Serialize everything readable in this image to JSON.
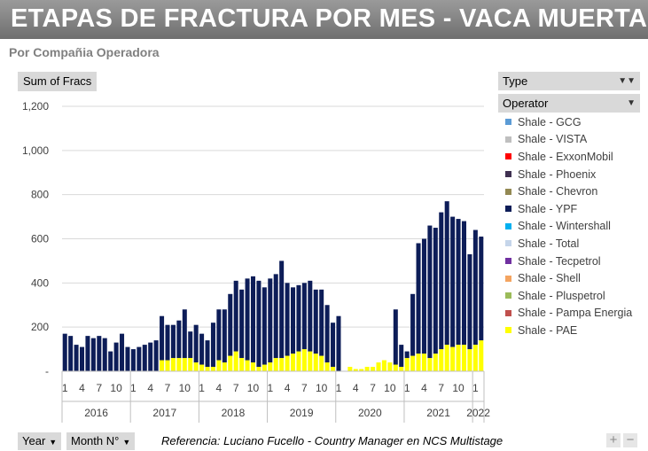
{
  "title": "ETAPAS DE FRACTURA POR MES -  VACA MUERTA",
  "subtitle": "Por Compañia Operadora",
  "value_field": "Sum of Fracs",
  "filters": {
    "type_label": "Type",
    "operator_label": "Operator"
  },
  "bottom": {
    "year_label": "Year",
    "month_label": "Month N°",
    "reference": "Referencia:  Luciano Fucello - Country Manager en NCS Multistage",
    "plus": "+",
    "minus": "−"
  },
  "colors": {
    "GCG": "#5b9bd5",
    "VISTA": "#bfbfbf",
    "ExxonMobil": "#ff0000",
    "Phoenix": "#3f3151",
    "Chevron": "#938953",
    "YPF": "#0d1d58",
    "Wintershall": "#00b0f0",
    "Total": "#c5d5ea",
    "Tecpetrol": "#7030a0",
    "Shell": "#f4a460",
    "Pluspetrol": "#9bbb59",
    "Pampa Energia": "#c0504d",
    "PAE": "#ffff00"
  },
  "chart_data": {
    "type": "bar",
    "stacked": true,
    "title": "ETAPAS DE FRACTURA POR MES -  VACA MUERTA",
    "ylabel": "Sum of Fracs",
    "xlabel": "",
    "ylim": [
      0,
      1200
    ],
    "yticks": [
      0,
      200,
      400,
      600,
      800,
      1000,
      1200
    ],
    "ytick_labels": [
      "-",
      "200",
      "400",
      "600",
      "800",
      "1,000",
      "1,200"
    ],
    "years": [
      {
        "label": "2016",
        "months": 12
      },
      {
        "label": "2017",
        "months": 12
      },
      {
        "label": "2018",
        "months": 12
      },
      {
        "label": "2019",
        "months": 12
      },
      {
        "label": "2020",
        "months": 12
      },
      {
        "label": "2021",
        "months": 12
      },
      {
        "label": "2022",
        "months": 2
      }
    ],
    "month_tick_labels": [
      "1",
      "4",
      "7",
      "10"
    ],
    "stack_order": [
      "PAE",
      "Pampa Energia",
      "Pluspetrol",
      "Shell",
      "Tecpetrol",
      "Total",
      "Wintershall",
      "YPF",
      "Chevron",
      "Phoenix",
      "ExxonMobil",
      "VISTA",
      "GCG"
    ],
    "legend": [
      "Shale - GCG",
      "Shale - VISTA",
      "Shale - ExxonMobil",
      "Shale - Phoenix",
      "Shale - Chevron",
      "Shale - YPF",
      "Shale - Wintershall",
      "Shale - Total",
      "Shale - Tecpetrol",
      "Shale - Shell",
      "Shale - Pluspetrol",
      "Shale - Pampa Energia",
      "Shale - PAE"
    ],
    "legend_keys": [
      "GCG",
      "VISTA",
      "ExxonMobil",
      "Phoenix",
      "Chevron",
      "YPF",
      "Wintershall",
      "Total",
      "Tecpetrol",
      "Shell",
      "Pluspetrol",
      "Pampa Energia",
      "PAE"
    ],
    "series": [
      {
        "name": "PAE",
        "values": [
          0,
          0,
          0,
          0,
          0,
          0,
          0,
          0,
          0,
          0,
          0,
          0,
          0,
          0,
          0,
          0,
          0,
          50,
          50,
          60,
          60,
          60,
          60,
          40,
          30,
          20,
          20,
          50,
          40,
          70,
          90,
          60,
          50,
          40,
          20,
          30,
          40,
          60,
          60,
          70,
          80,
          90,
          100,
          90,
          80,
          70,
          40,
          20,
          0,
          0,
          20,
          10,
          10,
          20,
          20,
          40,
          50,
          40,
          30,
          20,
          60,
          70,
          80,
          80,
          60,
          80,
          100,
          120,
          110,
          120,
          120,
          100,
          120,
          140
        ]
      },
      {
        "name": "Pampa Energia",
        "values": [
          0,
          0,
          0,
          0,
          0,
          0,
          0,
          0,
          0,
          0,
          0,
          0,
          0,
          0,
          0,
          0,
          0,
          0,
          0,
          0,
          0,
          0,
          0,
          0,
          0,
          0,
          0,
          0,
          0,
          0,
          0,
          0,
          0,
          0,
          0,
          0,
          0,
          0,
          0,
          0,
          0,
          0,
          0,
          0,
          0,
          0,
          0,
          0,
          0,
          0,
          0,
          0,
          0,
          0,
          0,
          0,
          0,
          0,
          0,
          0,
          0,
          0,
          0,
          0,
          0,
          0,
          0,
          0,
          0,
          0,
          0,
          0,
          0,
          0
        ]
      },
      {
        "name": "Pluspetrol",
        "values": [
          0,
          0,
          0,
          0,
          0,
          0,
          0,
          0,
          0,
          0,
          0,
          0,
          0,
          0,
          0,
          0,
          0,
          0,
          0,
          0,
          0,
          0,
          0,
          0,
          0,
          0,
          0,
          0,
          0,
          0,
          0,
          0,
          0,
          0,
          0,
          0,
          0,
          0,
          0,
          0,
          0,
          0,
          0,
          0,
          0,
          0,
          0,
          0,
          0,
          0,
          0,
          0,
          0,
          0,
          0,
          0,
          0,
          0,
          0,
          0,
          0,
          0,
          0,
          0,
          0,
          0,
          0,
          0,
          0,
          0,
          0,
          0,
          0,
          0
        ]
      },
      {
        "name": "Shell",
        "values": [
          0,
          0,
          0,
          0,
          0,
          0,
          0,
          0,
          0,
          0,
          0,
          0,
          0,
          0,
          0,
          0,
          0,
          0,
          0,
          0,
          0,
          0,
          0,
          0,
          0,
          0,
          0,
          0,
          0,
          0,
          0,
          0,
          0,
          0,
          0,
          0,
          0,
          0,
          0,
          0,
          0,
          0,
          0,
          0,
          0,
          0,
          0,
          0,
          0,
          0,
          0,
          0,
          0,
          0,
          0,
          0,
          0,
          0,
          0,
          0,
          0,
          0,
          0,
          0,
          0,
          0,
          0,
          0,
          0,
          0,
          0,
          0,
          0,
          0
        ]
      },
      {
        "name": "Tecpetrol",
        "values": [
          0,
          0,
          0,
          0,
          0,
          0,
          0,
          0,
          0,
          0,
          0,
          0,
          0,
          0,
          0,
          0,
          0,
          0,
          0,
          0,
          0,
          0,
          0,
          0,
          0,
          0,
          0,
          0,
          0,
          0,
          0,
          0,
          0,
          0,
          0,
          0,
          0,
          0,
          0,
          0,
          0,
          0,
          0,
          0,
          0,
          0,
          0,
          0,
          0,
          0,
          0,
          0,
          0,
          0,
          0,
          0,
          0,
          0,
          0,
          0,
          0,
          0,
          0,
          0,
          0,
          0,
          0,
          0,
          0,
          0,
          0,
          0,
          0,
          0
        ]
      },
      {
        "name": "Total",
        "values": [
          0,
          0,
          0,
          0,
          0,
          0,
          0,
          0,
          0,
          0,
          0,
          0,
          0,
          0,
          0,
          0,
          0,
          0,
          0,
          0,
          0,
          0,
          0,
          0,
          0,
          0,
          0,
          0,
          0,
          0,
          0,
          0,
          0,
          0,
          0,
          0,
          0,
          0,
          0,
          0,
          0,
          0,
          0,
          0,
          0,
          0,
          0,
          0,
          0,
          0,
          0,
          0,
          0,
          0,
          0,
          0,
          0,
          0,
          0,
          0,
          0,
          0,
          0,
          0,
          0,
          0,
          0,
          0,
          0,
          0,
          0,
          0,
          0,
          0
        ]
      },
      {
        "name": "Wintershall",
        "values": [
          0,
          0,
          0,
          0,
          0,
          0,
          0,
          0,
          0,
          0,
          0,
          0,
          0,
          0,
          0,
          0,
          0,
          0,
          0,
          0,
          0,
          0,
          0,
          0,
          0,
          0,
          0,
          0,
          0,
          0,
          0,
          0,
          0,
          0,
          0,
          0,
          0,
          0,
          0,
          0,
          0,
          0,
          0,
          0,
          0,
          0,
          0,
          0,
          0,
          0,
          0,
          0,
          0,
          0,
          0,
          0,
          0,
          0,
          0,
          0,
          0,
          0,
          0,
          0,
          0,
          0,
          0,
          0,
          0,
          0,
          0,
          0,
          0,
          0
        ]
      },
      {
        "name": "YPF",
        "values": [
          170,
          160,
          120,
          110,
          160,
          150,
          160,
          150,
          90,
          130,
          170,
          110,
          100,
          110,
          120,
          130,
          140,
          200,
          160,
          150,
          170,
          220,
          120,
          170,
          140,
          120,
          200,
          230,
          240,
          280,
          320,
          310,
          370,
          390,
          390,
          350,
          380,
          380,
          440,
          330,
          300,
          300,
          300,
          320,
          290,
          300,
          260,
          200,
          250,
          0,
          0,
          0,
          0,
          0,
          0,
          0,
          0,
          0,
          250,
          100,
          30,
          280,
          500,
          520,
          600,
          570,
          620,
          650,
          590,
          570,
          560,
          430,
          520,
          470
        ]
      },
      {
        "name": "Chevron",
        "values": [
          0,
          0,
          0,
          0,
          0,
          0,
          0,
          0,
          0,
          0,
          0,
          0,
          0,
          0,
          0,
          0,
          0,
          0,
          0,
          0,
          0,
          0,
          0,
          0,
          0,
          0,
          0,
          0,
          0,
          0,
          0,
          0,
          0,
          0,
          0,
          0,
          0,
          0,
          0,
          0,
          0,
          0,
          0,
          0,
          0,
          0,
          0,
          0,
          0,
          0,
          0,
          0,
          0,
          0,
          0,
          0,
          0,
          0,
          0,
          0,
          0,
          0,
          0,
          0,
          0,
          0,
          0,
          0,
          0,
          0,
          0,
          0,
          0,
          0
        ]
      },
      {
        "name": "Phoenix",
        "values": [
          0,
          0,
          0,
          0,
          0,
          0,
          0,
          0,
          0,
          0,
          0,
          0,
          0,
          0,
          0,
          0,
          0,
          0,
          0,
          0,
          0,
          0,
          0,
          0,
          0,
          0,
          0,
          0,
          0,
          0,
          0,
          0,
          0,
          0,
          0,
          0,
          0,
          0,
          0,
          0,
          0,
          0,
          0,
          0,
          0,
          0,
          0,
          0,
          0,
          0,
          0,
          0,
          0,
          0,
          0,
          0,
          0,
          0,
          0,
          0,
          0,
          0,
          0,
          0,
          0,
          0,
          0,
          0,
          0,
          0,
          0,
          0,
          0,
          0
        ]
      },
      {
        "name": "ExxonMobil",
        "values": [
          0,
          0,
          0,
          0,
          0,
          0,
          0,
          0,
          0,
          0,
          0,
          0,
          0,
          0,
          0,
          0,
          0,
          0,
          0,
          0,
          0,
          0,
          0,
          0,
          0,
          0,
          0,
          0,
          0,
          0,
          0,
          0,
          0,
          0,
          0,
          0,
          0,
          0,
          0,
          0,
          0,
          0,
          0,
          0,
          0,
          0,
          0,
          0,
          0,
          0,
          0,
          0,
          0,
          0,
          0,
          0,
          0,
          0,
          0,
          0,
          0,
          0,
          0,
          0,
          0,
          0,
          0,
          0,
          0,
          0,
          0,
          0,
          0,
          0
        ]
      },
      {
        "name": "VISTA",
        "values": [
          0,
          0,
          0,
          0,
          0,
          0,
          0,
          0,
          0,
          0,
          0,
          0,
          0,
          0,
          0,
          0,
          0,
          0,
          0,
          0,
          0,
          0,
          0,
          0,
          0,
          0,
          0,
          0,
          0,
          0,
          0,
          0,
          0,
          0,
          0,
          0,
          0,
          0,
          0,
          0,
          0,
          0,
          0,
          0,
          0,
          0,
          0,
          0,
          0,
          0,
          0,
          0,
          0,
          0,
          0,
          0,
          0,
          0,
          0,
          0,
          0,
          0,
          0,
          0,
          0,
          0,
          0,
          0,
          0,
          0,
          0,
          0,
          0,
          0
        ]
      },
      {
        "name": "GCG",
        "values": [
          0,
          0,
          0,
          0,
          0,
          0,
          0,
          0,
          0,
          0,
          0,
          0,
          0,
          0,
          0,
          0,
          0,
          0,
          0,
          0,
          0,
          0,
          0,
          0,
          0,
          0,
          0,
          0,
          0,
          0,
          0,
          0,
          0,
          0,
          0,
          0,
          0,
          0,
          0,
          0,
          0,
          0,
          0,
          0,
          0,
          0,
          0,
          0,
          0,
          0,
          0,
          0,
          0,
          0,
          0,
          0,
          0,
          0,
          0,
          0,
          0,
          0,
          0,
          0,
          0,
          0,
          0,
          0,
          0,
          0,
          0,
          0,
          0,
          0
        ]
      }
    ]
  }
}
